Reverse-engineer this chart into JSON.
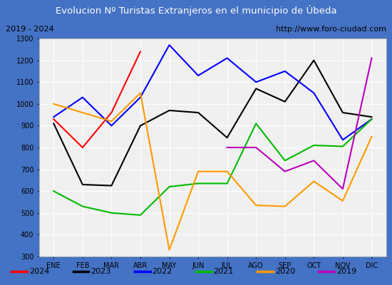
{
  "title": "Evolucion Nº Turistas Extranjeros en el municipio de Úbeda",
  "subtitle_left": "2019 - 2024",
  "subtitle_right": "http://www.foro-ciudad.com",
  "months": [
    "ENE",
    "FEB",
    "MAR",
    "ABR",
    "MAY",
    "JUN",
    "JUL",
    "AGO",
    "SEP",
    "OCT",
    "NOV",
    "DIC"
  ],
  "ylim": [
    300,
    1300
  ],
  "yticks": [
    300,
    400,
    500,
    600,
    700,
    800,
    900,
    1000,
    1100,
    1200,
    1300
  ],
  "series": {
    "2024": {
      "color": "#ff0000",
      "data": [
        930,
        800,
        960,
        1240,
        null,
        null,
        null,
        null,
        null,
        null,
        null,
        null
      ]
    },
    "2023": {
      "color": "#000000",
      "data": [
        910,
        630,
        625,
        900,
        970,
        960,
        845,
        1070,
        1010,
        1200,
        960,
        940
      ]
    },
    "2022": {
      "color": "#0000ff",
      "data": [
        940,
        1030,
        900,
        1030,
        1270,
        1130,
        1210,
        1100,
        1150,
        1050,
        835,
        930
      ]
    },
    "2021": {
      "color": "#00bb00",
      "data": [
        600,
        530,
        500,
        490,
        620,
        635,
        635,
        910,
        740,
        810,
        805,
        930
      ]
    },
    "2020": {
      "color": "#ff9900",
      "data": [
        1000,
        960,
        920,
        1050,
        330,
        690,
        690,
        535,
        530,
        645,
        555,
        850
      ]
    },
    "2019": {
      "color": "#bb00bb",
      "data": [
        null,
        null,
        null,
        null,
        null,
        null,
        800,
        800,
        690,
        740,
        610,
        1210
      ]
    }
  },
  "title_bg_color": "#4472c4",
  "title_font_color": "#ffffff",
  "subtitle_bg_color": "#e8e8e8",
  "plot_bg_color": "#f0f0f0",
  "border_color": "#4472c4",
  "grid_color": "#ffffff",
  "legend_order": [
    "2024",
    "2023",
    "2022",
    "2021",
    "2020",
    "2019"
  ]
}
